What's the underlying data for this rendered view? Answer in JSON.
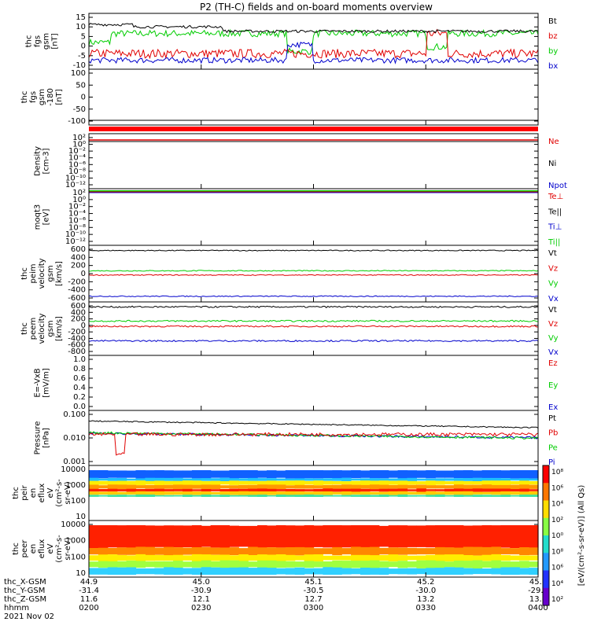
{
  "chart_data": {
    "title": "P2 (TH-C) fields and on-board moments overview",
    "type": "line",
    "colors": {
      "black": "#000000",
      "red": "#e00000",
      "green": "#00cc00",
      "blue": "#0000cc"
    },
    "panels": [
      {
        "id": "fgs",
        "ylabel": [
          "thc",
          "fgs",
          "gsm",
          "[nT]"
        ],
        "ytick_labels": [
          "15",
          "10",
          "5",
          "0",
          "-5",
          "-10"
        ],
        "legend": [
          {
            "label": "Bt",
            "color": "#000000"
          },
          {
            "label": "bz",
            "color": "#e00000"
          },
          {
            "label": "by",
            "color": "#00cc00"
          },
          {
            "label": "bx",
            "color": "#0000cc"
          }
        ]
      },
      {
        "id": "fgs_angle",
        "ylabel": [
          "thc",
          "fgs",
          "gsm",
          "-180",
          "[nT]"
        ],
        "ytick_labels": [
          "100",
          "50",
          "0",
          "-50",
          "-100"
        ],
        "legend": []
      },
      {
        "id": "density",
        "ylabel": [
          "Density",
          "[cm-3]"
        ],
        "ytick_labels": [
          "10²",
          "10⁰",
          "10⁻²",
          "10⁻⁴",
          "10⁻⁶",
          "10⁻⁸",
          "10⁻¹⁰",
          "10⁻¹²"
        ],
        "legend": [
          {
            "label": "Ne",
            "color": "#e00000"
          },
          {
            "label": "Ni",
            "color": "#000000"
          },
          {
            "label": "Npot",
            "color": "#0000cc"
          }
        ]
      },
      {
        "id": "temp",
        "ylabel": [
          "moqt3",
          "[eV]"
        ],
        "ytick_labels": [
          "10²",
          "10⁰",
          "10⁻²",
          "10⁻⁴",
          "10⁻⁶",
          "10⁻⁸",
          "10⁻¹⁰",
          "10⁻¹²"
        ],
        "legend": [
          {
            "label": "Te⊥",
            "color": "#e00000"
          },
          {
            "label": "Te||",
            "color": "#000000"
          },
          {
            "label": "Ti⊥",
            "color": "#0000cc"
          },
          {
            "label": "Ti||",
            "color": "#00cc00"
          }
        ]
      },
      {
        "id": "peim_v",
        "ylabel": [
          "thc",
          "peim",
          "velocity",
          "gsm",
          "[km/s]"
        ],
        "ytick_labels": [
          "600",
          "400",
          "200",
          "0",
          "-200",
          "-400",
          "-600"
        ],
        "legend": [
          {
            "label": "Vt",
            "color": "#000000"
          },
          {
            "label": "Vz",
            "color": "#e00000"
          },
          {
            "label": "Vy",
            "color": "#00cc00"
          },
          {
            "label": "Vx",
            "color": "#0000cc"
          }
        ]
      },
      {
        "id": "peem_v",
        "ylabel": [
          "thc",
          "peem",
          "velocity",
          "gsm",
          "[km/s]"
        ],
        "ytick_labels": [
          "600",
          "400",
          "200",
          "0",
          "-200",
          "-400",
          "-600",
          "-800"
        ],
        "legend": [
          {
            "label": "Vt",
            "color": "#000000"
          },
          {
            "label": "Vz",
            "color": "#e00000"
          },
          {
            "label": "Vy",
            "color": "#00cc00"
          },
          {
            "label": "Vx",
            "color": "#0000cc"
          }
        ]
      },
      {
        "id": "efield",
        "ylabel": [
          "E=-VxB",
          "[mV/m]"
        ],
        "ytick_labels": [
          "1.0",
          "0.8",
          "0.6",
          "0.4",
          "0.2",
          "0.0"
        ],
        "legend": [
          {
            "label": "Ez",
            "color": "#e00000"
          },
          {
            "label": "Ey",
            "color": "#00cc00"
          },
          {
            "label": "Ex",
            "color": "#0000cc"
          }
        ]
      },
      {
        "id": "pressure",
        "ylabel": [
          "Pressure",
          "[nPa]"
        ],
        "ytick_labels": [
          "0.100",
          "0.010",
          "0.001"
        ],
        "legend": [
          {
            "label": "Pt",
            "color": "#000000"
          },
          {
            "label": "Pb",
            "color": "#e00000"
          },
          {
            "label": "Pe",
            "color": "#00cc00"
          },
          {
            "label": "Pi",
            "color": "#0000cc"
          }
        ]
      },
      {
        "id": "peir",
        "ylabel": [
          "thc",
          "peir",
          "en",
          "eflux",
          "eV",
          "(cm²-s-",
          "sr-eV)"
        ],
        "ytick_labels": [
          "10000",
          "1000",
          "100",
          "10"
        ],
        "legend": []
      },
      {
        "id": "peer",
        "ylabel": [
          "thc",
          "peer",
          "en",
          "eflux",
          "eV",
          "(cm²-s-",
          "sr-eV)"
        ],
        "ytick_labels": [
          "10000",
          "1000",
          "100",
          "10"
        ],
        "legend": []
      }
    ],
    "colorbar": {
      "label": "[eV/(cm²-s-sr-eV)] (All Qs)",
      "tick_labels": [
        "10⁸",
        "10⁶",
        "10⁴",
        "10²",
        "10⁰",
        "10⁸",
        "10⁶",
        "10⁴",
        "10²"
      ]
    },
    "x_axis": {
      "row_labels": [
        "thc_X-GSM",
        "thc_Y-GSM",
        "thc_Z-GSM",
        "hhmm",
        "2021 Nov 02"
      ],
      "columns": [
        {
          "values": [
            "44.9",
            "-31.4",
            "11.6",
            "0200"
          ]
        },
        {
          "values": [
            "45.0",
            "-30.9",
            "12.1",
            "0230"
          ]
        },
        {
          "values": [
            "45.1",
            "-30.5",
            "12.7",
            "0300"
          ]
        },
        {
          "values": [
            "45.2",
            "-30.0",
            "13.2",
            "0330"
          ]
        },
        {
          "values": [
            "45.3",
            "-29.6",
            "13.8",
            "0400"
          ]
        }
      ]
    },
    "series_levels": {
      "fgs": {
        "ylim": [
          -10,
          15
        ],
        "Bt": 7,
        "bz": -3,
        "by": 6,
        "bx": -6
      },
      "peim_v": {
        "ylim": [
          -600,
          600
        ],
        "Vt": 490,
        "Vz": -30,
        "Vy": 60,
        "Vx": -480
      },
      "peem_v": {
        "ylim": [
          -800,
          600
        ],
        "Vt": 470,
        "Vz": -40,
        "Vy": 100,
        "Vx": -420
      },
      "pressure_log_ylim": [
        0.001,
        0.3
      ],
      "pressure": {
        "Pt": 0.1,
        "Pb": 0.025,
        "Pe": 0.03,
        "Pi": 0.028
      }
    }
  }
}
